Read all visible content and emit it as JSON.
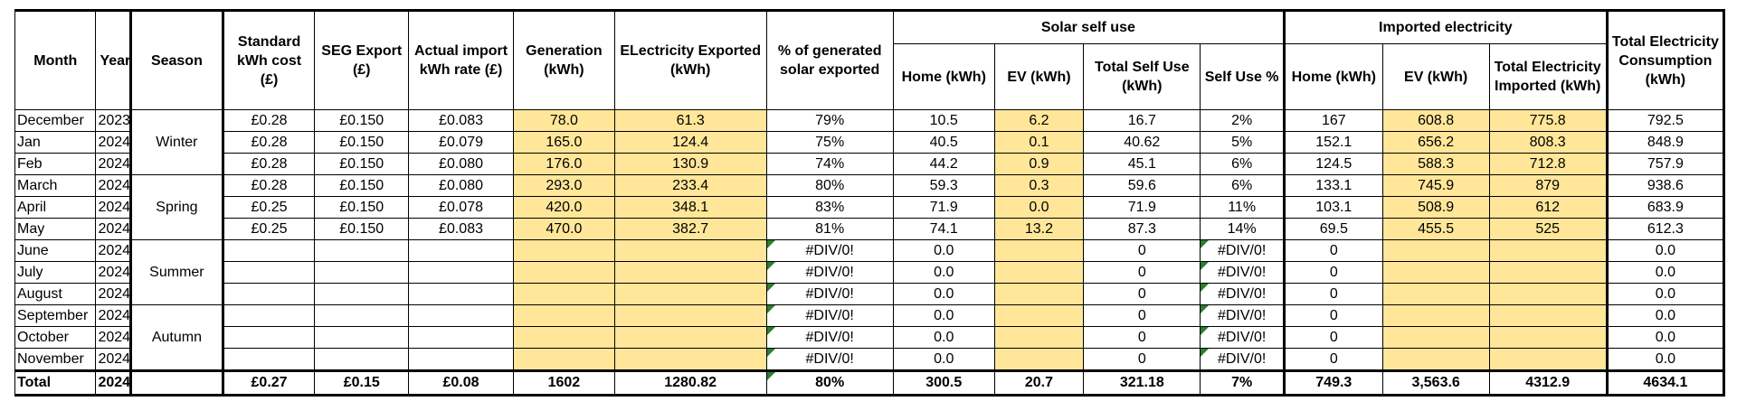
{
  "headers": {
    "month": "Month",
    "year": "Year",
    "season": "Season",
    "std_cost": "Standard kWh cost (£)",
    "seg_export": "SEG Export (£)",
    "import_rate": "Actual import kWh rate (£)",
    "generation": "Generation (kWh)",
    "exported": "ELectricity Exported (kWh)",
    "pct_exported": "% of generated solar exported",
    "solar_group": "Solar self use",
    "imported_group": "Imported electricity",
    "total_consumption": "Total Electricity Consumption (kWh)",
    "solar_home": "Home (kWh)",
    "solar_ev": "EV (kWh)",
    "solar_total": "Total Self Use (kWh)",
    "self_use_pct": "Self Use %",
    "imp_home": "Home (kWh)",
    "imp_ev": "EV (kWh)",
    "imp_total": "Total Electricity Imported (kWh)"
  },
  "seasons": [
    "Winter",
    "Spring",
    "Summer",
    "Autumn"
  ],
  "rows": [
    [
      "December",
      "2023",
      "£0.28",
      "£0.150",
      "£0.083",
      "78.0",
      "61.3",
      "79%",
      "10.5",
      "6.2",
      "16.7",
      "2%",
      "167",
      "608.8",
      "775.8",
      "792.5"
    ],
    [
      "Jan",
      "2024",
      "£0.28",
      "£0.150",
      "£0.079",
      "165.0",
      "124.4",
      "75%",
      "40.5",
      "0.1",
      "40.62",
      "5%",
      "152.1",
      "656.2",
      "808.3",
      "848.9"
    ],
    [
      "Feb",
      "2024",
      "£0.28",
      "£0.150",
      "£0.080",
      "176.0",
      "130.9",
      "74%",
      "44.2",
      "0.9",
      "45.1",
      "6%",
      "124.5",
      "588.3",
      "712.8",
      "757.9"
    ],
    [
      "March",
      "2024",
      "£0.28",
      "£0.150",
      "£0.080",
      "293.0",
      "233.4",
      "80%",
      "59.3",
      "0.3",
      "59.6",
      "6%",
      "133.1",
      "745.9",
      "879",
      "938.6"
    ],
    [
      "April",
      "2024",
      "£0.25",
      "£0.150",
      "£0.078",
      "420.0",
      "348.1",
      "83%",
      "71.9",
      "0.0",
      "71.9",
      "11%",
      "103.1",
      "508.9",
      "612",
      "683.9"
    ],
    [
      "May",
      "2024",
      "£0.25",
      "£0.150",
      "£0.083",
      "470.0",
      "382.7",
      "81%",
      "74.1",
      "13.2",
      "87.3",
      "14%",
      "69.5",
      "455.5",
      "525",
      "612.3"
    ],
    [
      "June",
      "2024",
      "",
      "",
      "",
      "",
      "",
      "#DIV/0!",
      "0.0",
      "",
      "0",
      "#DIV/0!",
      "0",
      "",
      "",
      "0.0"
    ],
    [
      "July",
      "2024",
      "",
      "",
      "",
      "",
      "",
      "#DIV/0!",
      "0.0",
      "",
      "0",
      "#DIV/0!",
      "0",
      "",
      "",
      "0.0"
    ],
    [
      "August",
      "2024",
      "",
      "",
      "",
      "",
      "",
      "#DIV/0!",
      "0.0",
      "",
      "0",
      "#DIV/0!",
      "0",
      "",
      "",
      "0.0"
    ],
    [
      "September",
      "2024",
      "",
      "",
      "",
      "",
      "",
      "#DIV/0!",
      "0.0",
      "",
      "0",
      "#DIV/0!",
      "0",
      "",
      "",
      "0.0"
    ],
    [
      "October",
      "2024",
      "",
      "",
      "",
      "",
      "",
      "#DIV/0!",
      "0.0",
      "",
      "0",
      "#DIV/0!",
      "0",
      "",
      "",
      "0.0"
    ],
    [
      "November",
      "2024",
      "",
      "",
      "",
      "",
      "",
      "#DIV/0!",
      "0.0",
      "",
      "0",
      "#DIV/0!",
      "0",
      "",
      "",
      "0.0"
    ]
  ],
  "total": [
    "Total",
    "2024",
    "",
    "£0.27",
    "£0.15",
    "£0.08",
    "1602",
    "1280.82",
    "80%",
    "300.5",
    "20.7",
    "321.18",
    "7%",
    "749.3",
    "3,563.6",
    "4312.9",
    "4634.1"
  ]
}
